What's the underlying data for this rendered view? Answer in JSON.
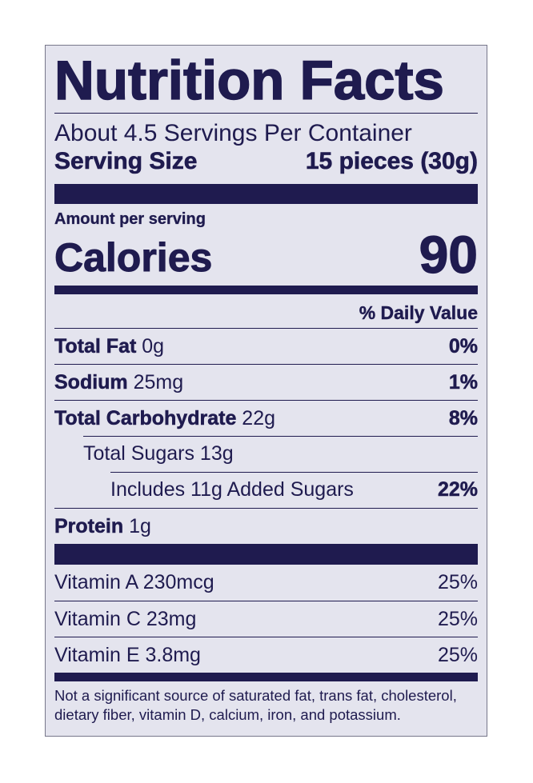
{
  "title": "Nutrition Facts",
  "servings_per_container": "About 4.5 Servings Per Container",
  "serving_size": {
    "label": "Serving Size",
    "value": "15 pieces (30g)"
  },
  "amount_per_serving": "Amount per serving",
  "calories": {
    "label": "Calories",
    "value": "90"
  },
  "daily_value_header": "% Daily Value",
  "nutrients": [
    {
      "name": "Total Fat",
      "amount": "0g",
      "dv": "0%"
    },
    {
      "name": "Sodium",
      "amount": "25mg",
      "dv": "1%"
    },
    {
      "name": "Total Carbohydrate",
      "amount": "22g",
      "dv": "8%"
    },
    {
      "name": "Total Sugars 13g",
      "dv": ""
    },
    {
      "name": "Includes 11g Added Sugars",
      "dv": "22%"
    },
    {
      "name": "Protein",
      "amount": "1g"
    }
  ],
  "vitamins": [
    {
      "name": "Vitamin A 230mcg",
      "dv": "25%"
    },
    {
      "name": "Vitamin C 23mg",
      "dv": "25%"
    },
    {
      "name": "Vitamin E 3.8mg",
      "dv": "25%"
    }
  ],
  "footnote": "Not a significant source of saturated fat, trans fat, cholesterol, dietary fiber, vitamin D, calcium, iron, and potassium.",
  "colors": {
    "ink": "#1f1b4f",
    "background": "#e4e4ee"
  }
}
